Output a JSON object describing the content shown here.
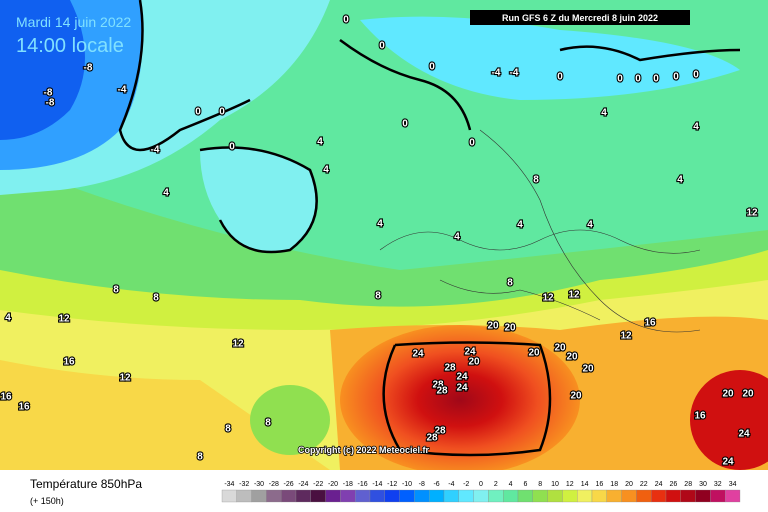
{
  "map": {
    "date_label": "Mardi 14 juin 2022",
    "time_label": "14:00 locale",
    "run_label": "Run GFS 6 Z du Mercredi 8 juin 2022",
    "copyright": "Copyright (c) 2022 Meteociel.fr",
    "legend_title": "Température 850hPa",
    "legend_subtitle": "(+ 150h)",
    "contour_labels": [
      -8,
      -4,
      -8,
      -8,
      -4,
      0,
      0,
      0,
      0,
      0,
      0,
      0,
      0,
      -4,
      -4,
      0,
      0,
      0,
      0,
      0,
      0,
      4,
      4,
      4,
      4,
      4,
      4,
      8,
      4,
      4,
      4,
      4,
      8,
      8,
      8,
      8,
      12,
      12,
      12,
      12,
      12,
      12,
      16,
      16,
      16,
      16,
      16,
      20,
      20,
      20,
      20,
      20,
      20,
      20,
      20,
      20,
      20,
      24,
      24,
      24,
      24,
      24,
      24,
      28,
      28,
      28,
      28,
      28,
      8,
      8,
      8,
      4,
      12
    ],
    "colorbar": {
      "values": [
        -34,
        -32,
        -30,
        -28,
        -26,
        -24,
        -22,
        -20,
        -18,
        -16,
        -14,
        -12,
        -10,
        -8,
        -6,
        -4,
        -2,
        0,
        2,
        4,
        6,
        8,
        10,
        12,
        14,
        16,
        18,
        20,
        22,
        24,
        26,
        28,
        30,
        32,
        34
      ],
      "colors": [
        "#d9d9d9",
        "#bdbdbd",
        "#a0a0a0",
        "#8c6b8c",
        "#7a4a7a",
        "#5e2a5e",
        "#4a1040",
        "#6a2090",
        "#8040b0",
        "#6060d0",
        "#3050e0",
        "#1040f0",
        "#0060ff",
        "#0090ff",
        "#00b0ff",
        "#30d0ff",
        "#60e8ff",
        "#80f0f0",
        "#70f0c0",
        "#60e8a0",
        "#70e070",
        "#90e050",
        "#b0e040",
        "#d0f040",
        "#f0f060",
        "#f8d848",
        "#f8b030",
        "#f89020",
        "#f06010",
        "#e83010",
        "#d01010",
        "#b00818",
        "#900020",
        "#c01060",
        "#e040a0"
      ]
    }
  }
}
